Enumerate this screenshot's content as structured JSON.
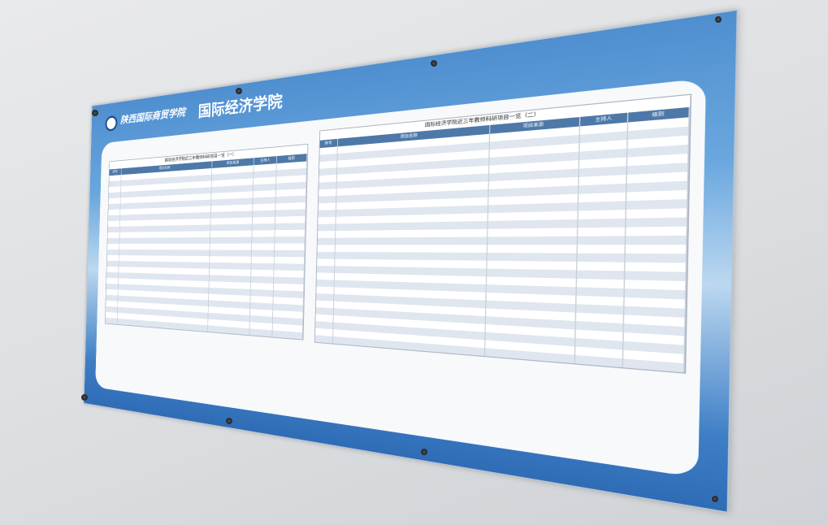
{
  "header": {
    "school": "陕西国际商贸学院",
    "college": "国际经济学院"
  },
  "tables": [
    {
      "title": "国际经济学院近三年教师科研项目一览（一）",
      "columns": [
        "序号",
        "项目名称",
        "项目来源",
        "主持人",
        "级别"
      ]
    },
    {
      "title": "国际经济学院近三年教师科研项目一览（二）",
      "columns": [
        "序号",
        "项目名称",
        "项目来源",
        "主持人",
        "级别"
      ]
    }
  ]
}
